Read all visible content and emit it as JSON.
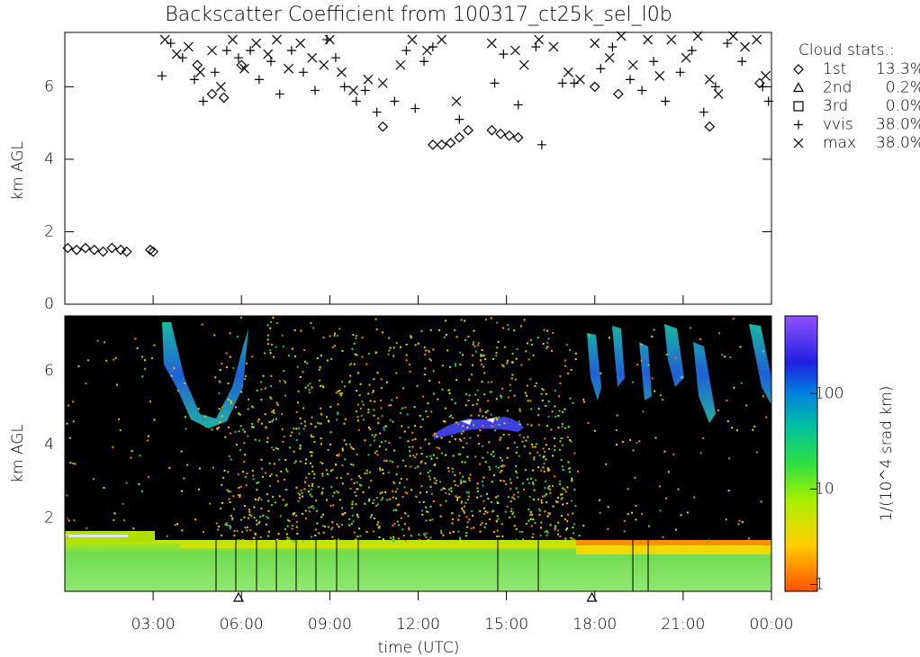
{
  "chart_data": [
    {
      "type": "scatter",
      "title": "Backscatter Coefficient from 100317_ct25k_sel_l0b",
      "ylabel": "km AGL",
      "xlim": [
        0,
        24
      ],
      "ylim": [
        0,
        7.5
      ],
      "yticks": [
        0,
        2,
        4,
        6
      ],
      "legend_title": "Cloud stats.:",
      "series": [
        {
          "name": "1st",
          "label": "13.3%",
          "marker": "diamond",
          "x": [
            0.1,
            0.4,
            0.7,
            1.0,
            1.3,
            1.6,
            1.9,
            2.1,
            2.9,
            3.0,
            10.8,
            12.5,
            12.8,
            13.1,
            13.4,
            13.7,
            14.5,
            14.8,
            15.1,
            15.4,
            18.0,
            18.8,
            21.9,
            23.6,
            4.5,
            5.0,
            5.4,
            6.0
          ],
          "values": [
            1.55,
            1.5,
            1.55,
            1.5,
            1.45,
            1.55,
            1.5,
            1.45,
            1.5,
            1.45,
            4.9,
            4.4,
            4.4,
            4.45,
            4.6,
            4.8,
            4.8,
            4.7,
            4.65,
            4.6,
            6.0,
            5.8,
            4.9,
            6.1,
            6.6,
            5.8,
            5.7,
            6.6
          ]
        },
        {
          "name": "2nd",
          "label": "0.2%",
          "marker": "triangle",
          "x": [
            5.9,
            17.9
          ],
          "values": [
            0,
            0
          ]
        },
        {
          "name": "3rd",
          "label": "0.0%",
          "marker": "square",
          "x": [],
          "values": []
        },
        {
          "name": "vvis",
          "label": "38.0%",
          "marker": "plus",
          "x": [
            3.3,
            3.6,
            4.0,
            4.4,
            4.7,
            5.1,
            5.5,
            5.9,
            6.3,
            6.6,
            7.0,
            7.3,
            7.7,
            8.1,
            8.5,
            8.9,
            9.2,
            9.5,
            9.9,
            10.2,
            10.6,
            11.2,
            11.6,
            11.9,
            12.2,
            12.5,
            13.4,
            14.6,
            14.9,
            15.4,
            16.0,
            16.2,
            16.9,
            17.3,
            18.2,
            18.6,
            19.2,
            19.6,
            20.0,
            20.4,
            20.9,
            21.3,
            21.7,
            22.1,
            22.5,
            23.0,
            23.7,
            23.9
          ],
          "values": [
            6.3,
            7.2,
            6.8,
            6.2,
            5.6,
            6.4,
            7.0,
            6.8,
            7.0,
            6.2,
            6.7,
            5.8,
            7.0,
            6.4,
            5.9,
            7.3,
            6.8,
            6.0,
            5.6,
            5.9,
            5.3,
            5.6,
            7.0,
            5.4,
            6.7,
            7.1,
            5.1,
            6.1,
            6.9,
            5.5,
            7.1,
            4.4,
            6.1,
            6.1,
            6.5,
            7.1,
            6.2,
            5.9,
            6.7,
            5.6,
            6.4,
            7.0,
            5.3,
            6.0,
            7.2,
            6.7,
            6.0,
            5.6
          ]
        },
        {
          "name": "max",
          "label": "38.0%",
          "marker": "cross",
          "x": [
            3.4,
            3.8,
            4.2,
            4.6,
            5.0,
            5.3,
            5.7,
            6.1,
            6.5,
            6.9,
            7.2,
            7.6,
            8.0,
            8.4,
            8.8,
            9.0,
            9.4,
            9.8,
            10.3,
            10.8,
            11.4,
            11.8,
            12.3,
            12.8,
            13.3,
            14.5,
            15.3,
            15.6,
            16.1,
            16.6,
            17.1,
            17.5,
            18.0,
            18.5,
            18.9,
            19.3,
            19.8,
            20.2,
            20.6,
            21.1,
            21.5,
            21.9,
            22.2,
            22.7,
            23.1,
            23.5,
            23.8
          ],
          "values": [
            7.3,
            6.9,
            7.1,
            6.4,
            7.0,
            6.0,
            7.3,
            6.5,
            7.2,
            6.9,
            7.3,
            6.5,
            7.2,
            6.8,
            6.6,
            7.3,
            6.4,
            5.9,
            6.2,
            6.1,
            6.6,
            7.3,
            7.0,
            7.3,
            5.6,
            7.2,
            7.0,
            6.6,
            7.3,
            7.1,
            6.4,
            6.2,
            7.2,
            6.8,
            7.4,
            6.6,
            7.3,
            6.3,
            7.3,
            6.8,
            7.4,
            6.2,
            5.8,
            7.4,
            7.1,
            7.3,
            6.3
          ]
        }
      ]
    },
    {
      "type": "heatmap",
      "ylabel": "km AGL",
      "xlabel": "time (UTC)",
      "xlim": [
        0,
        24
      ],
      "ylim": [
        0,
        7.5
      ],
      "yticks": [
        2,
        4,
        6
      ],
      "xticks": [
        {
          "value": 3,
          "label": "03:00"
        },
        {
          "value": 6,
          "label": "06:00"
        },
        {
          "value": 9,
          "label": "09:00"
        },
        {
          "value": 12,
          "label": "12:00"
        },
        {
          "value": 15,
          "label": "15:00"
        },
        {
          "value": 18,
          "label": "18:00"
        },
        {
          "value": 21,
          "label": "21:00"
        },
        {
          "value": 24,
          "label": "00:00"
        }
      ],
      "color_scale": "log",
      "clim": [
        0.85,
        650
      ],
      "cticks": [
        1,
        10,
        100
      ],
      "clabel": "1/(10^4 srad km)"
    }
  ]
}
